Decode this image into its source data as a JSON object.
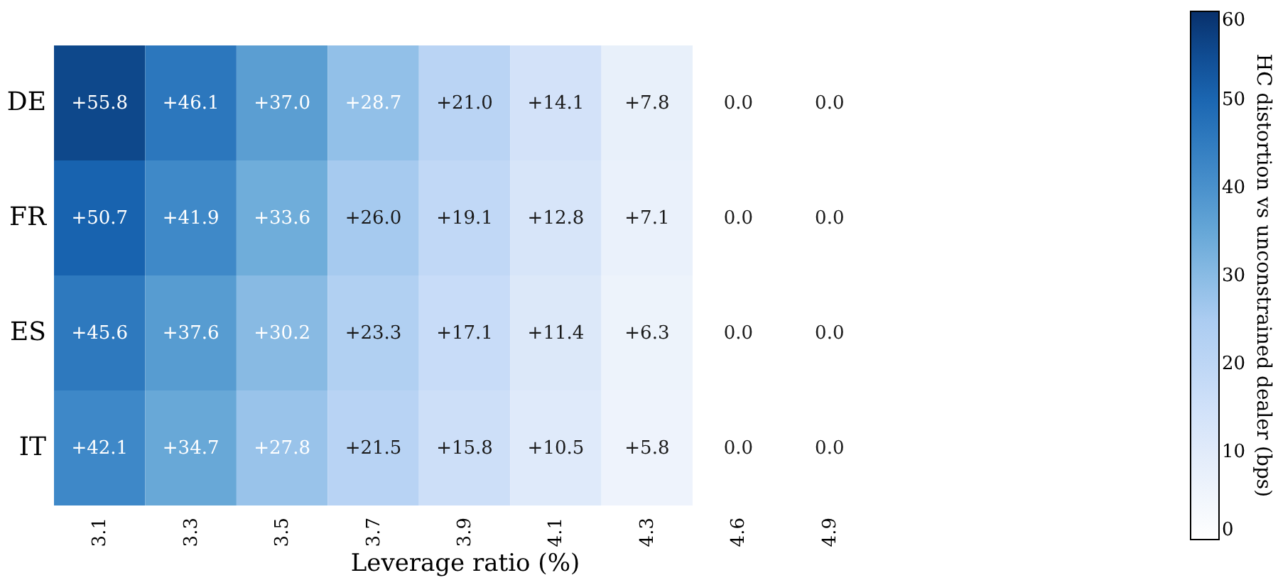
{
  "chart_data": {
    "type": "heatmap",
    "xlabel": "Leverage ratio (%)",
    "clabel": "HC distortion vs unconstrained dealer (bps)",
    "categories": [
      "3.1",
      "3.3",
      "3.5",
      "3.7",
      "3.9",
      "4.1",
      "4.3",
      "4.6",
      "4.9"
    ],
    "y_categories": [
      "DE",
      "FR",
      "ES",
      "IT"
    ],
    "cells": [
      [
        55.8,
        46.1,
        37.0,
        28.7,
        21.0,
        14.1,
        7.8,
        0.0,
        0.0
      ],
      [
        50.7,
        41.9,
        33.6,
        26.0,
        19.1,
        12.8,
        7.1,
        0.0,
        0.0
      ],
      [
        45.6,
        37.6,
        30.2,
        23.3,
        17.1,
        11.4,
        6.3,
        0.0,
        0.0
      ],
      [
        42.1,
        34.7,
        27.8,
        21.5,
        15.8,
        10.5,
        5.8,
        0.0,
        0.0
      ]
    ],
    "cell_labels": [
      [
        "+55.8",
        "+46.1",
        "+37.0",
        "+28.7",
        "+21.0",
        "+14.1",
        "+7.8",
        "0.0",
        "0.0"
      ],
      [
        "+50.7",
        "+41.9",
        "+33.6",
        "+26.0",
        "+19.1",
        "+12.8",
        "+7.1",
        "0.0",
        "0.0"
      ],
      [
        "+45.6",
        "+37.6",
        "+30.2",
        "+23.3",
        "+17.1",
        "+11.4",
        "+6.3",
        "0.0",
        "0.0"
      ],
      [
        "+42.1",
        "+34.7",
        "+27.8",
        "+21.5",
        "+15.8",
        "+10.5",
        "+5.8",
        "0.0",
        "0.0"
      ]
    ],
    "clim": [
      0,
      60
    ],
    "cticks": [
      0,
      10,
      20,
      30,
      40,
      50,
      60
    ]
  }
}
